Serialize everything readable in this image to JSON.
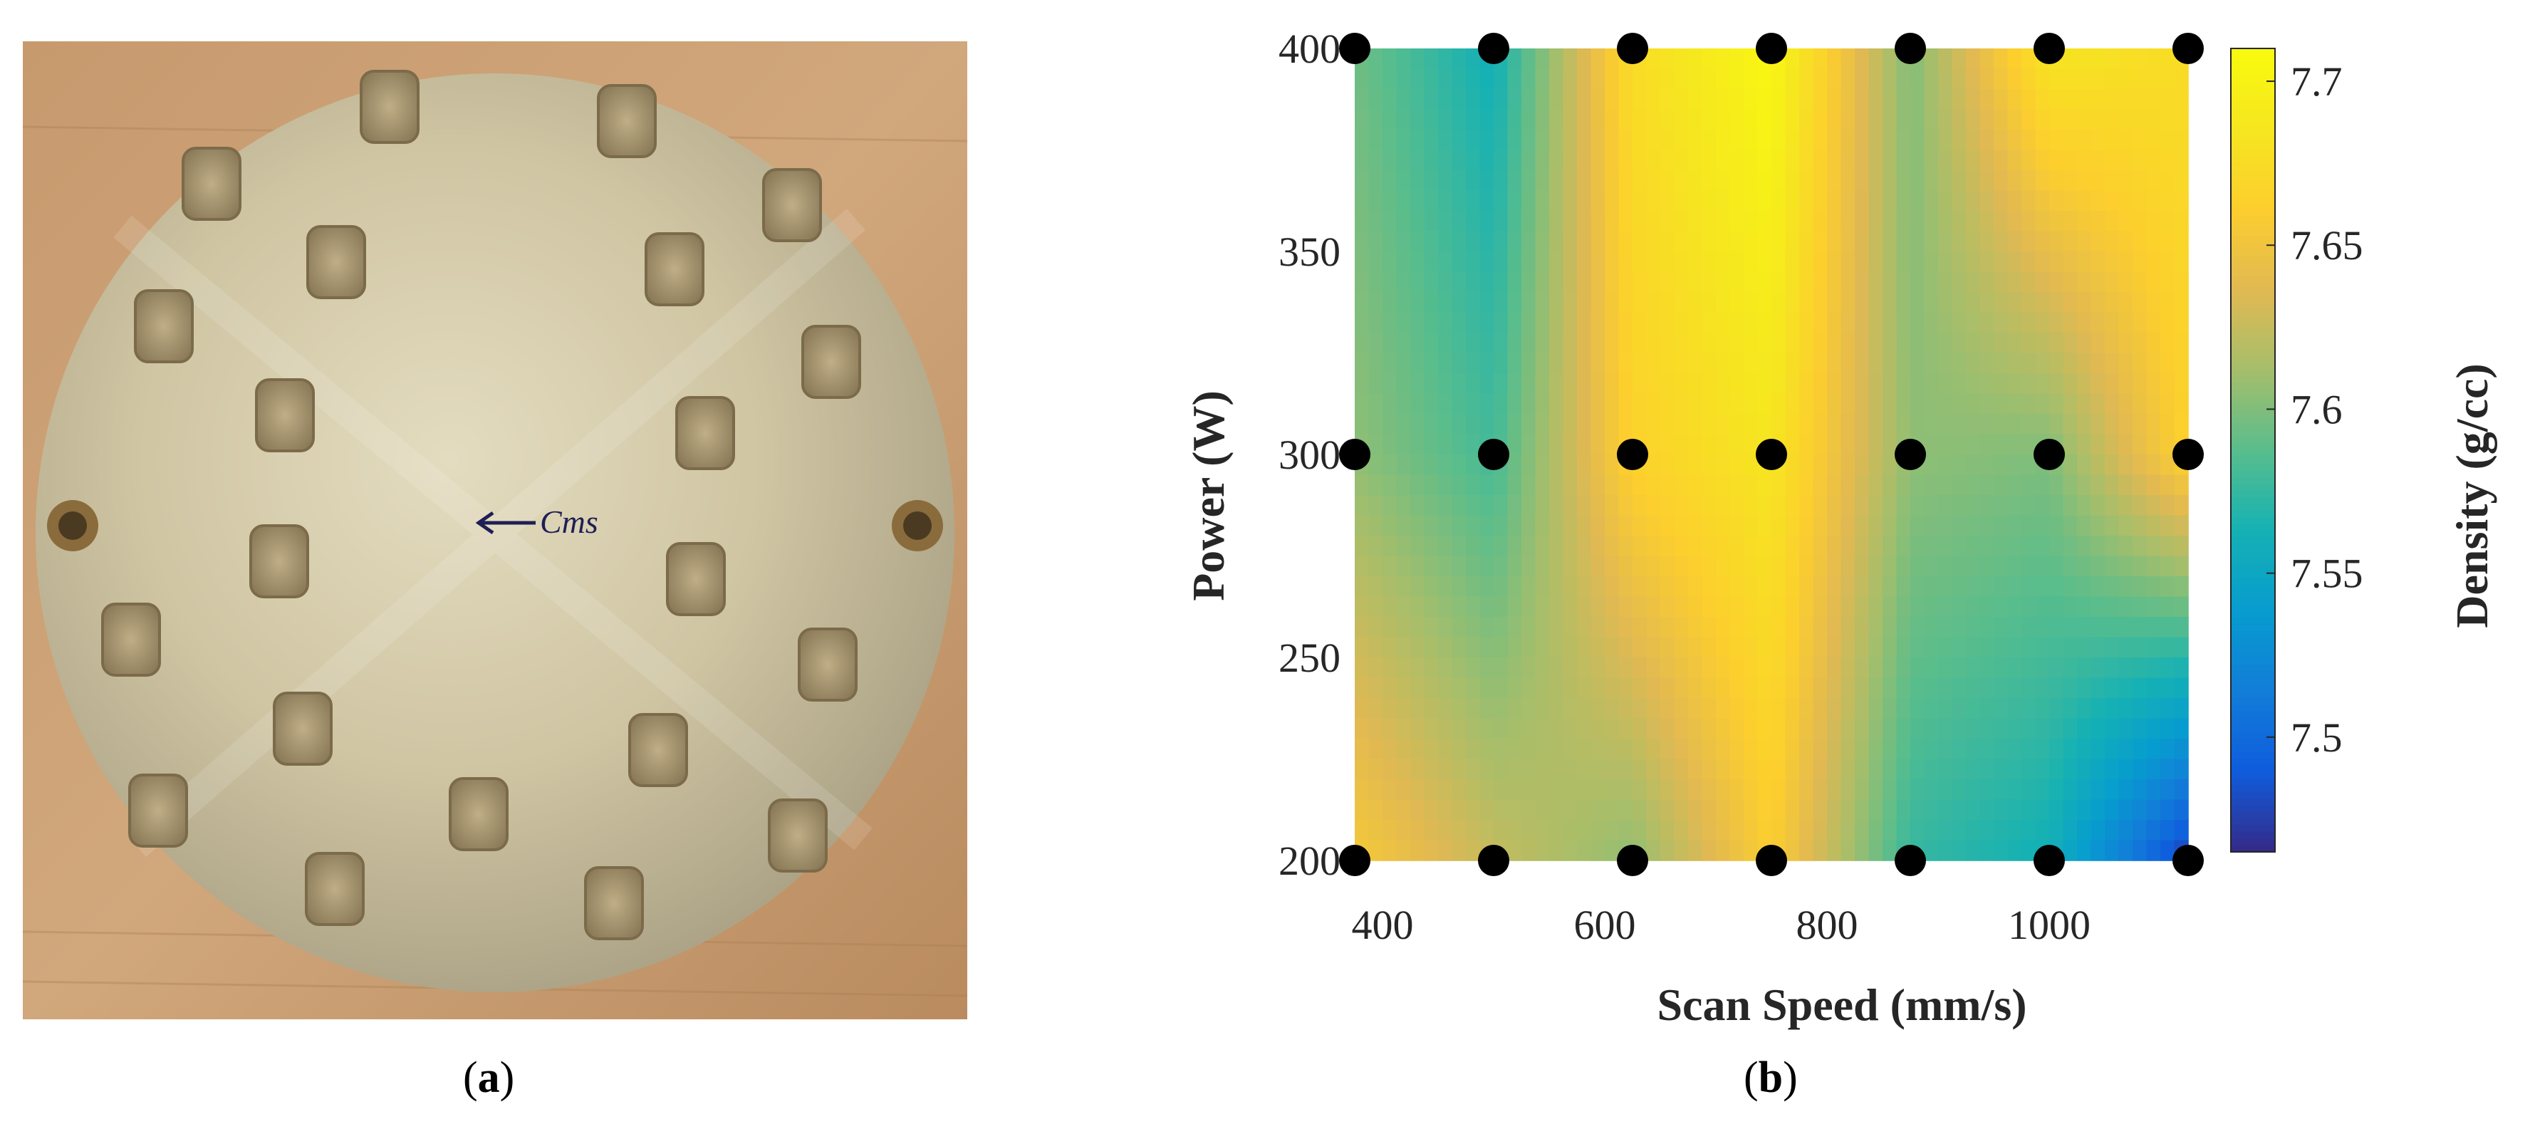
{
  "panels": {
    "a": {
      "open": "(",
      "letter": "a",
      "close": ")"
    },
    "b": {
      "open": "(",
      "letter": "b",
      "close": ")"
    }
  },
  "photo": {
    "handwriting": "Cms"
  },
  "chart_data": {
    "type": "heatmap",
    "xlabel": "Scan Speed (mm/s)",
    "ylabel": "Power (W)",
    "colorbar_label": "Density (g/cc)",
    "xlim": [
      375,
      1125
    ],
    "ylim": [
      200,
      400
    ],
    "colorbar_range": [
      7.465,
      7.71
    ],
    "x_ticks": [
      400,
      600,
      800,
      1000
    ],
    "y_ticks": [
      200,
      250,
      300,
      350,
      400
    ],
    "colorbar_ticks": [
      7.5,
      7.55,
      7.6,
      7.65,
      7.7
    ],
    "colormap": "parula",
    "grid": false,
    "x": [
      375,
      500,
      625,
      750,
      875,
      1000,
      1125
    ],
    "y": [
      200,
      300,
      400
    ],
    "z": [
      [
        7.655,
        7.625,
        7.605,
        7.66,
        7.575,
        7.56,
        7.475
      ],
      [
        7.605,
        7.58,
        7.665,
        7.685,
        7.605,
        7.6,
        7.665
      ],
      [
        7.595,
        7.56,
        7.675,
        7.705,
        7.6,
        7.685,
        7.675
      ]
    ],
    "markers": {
      "color": "#000000",
      "points": [
        [
          375,
          200
        ],
        [
          500,
          200
        ],
        [
          625,
          200
        ],
        [
          750,
          200
        ],
        [
          875,
          200
        ],
        [
          1000,
          200
        ],
        [
          1125,
          200
        ],
        [
          375,
          300
        ],
        [
          500,
          300
        ],
        [
          625,
          300
        ],
        [
          750,
          300
        ],
        [
          875,
          300
        ],
        [
          1000,
          300
        ],
        [
          1125,
          300
        ],
        [
          375,
          400
        ],
        [
          500,
          400
        ],
        [
          625,
          400
        ],
        [
          750,
          400
        ],
        [
          875,
          400
        ],
        [
          1000,
          400
        ],
        [
          1125,
          400
        ]
      ]
    }
  }
}
